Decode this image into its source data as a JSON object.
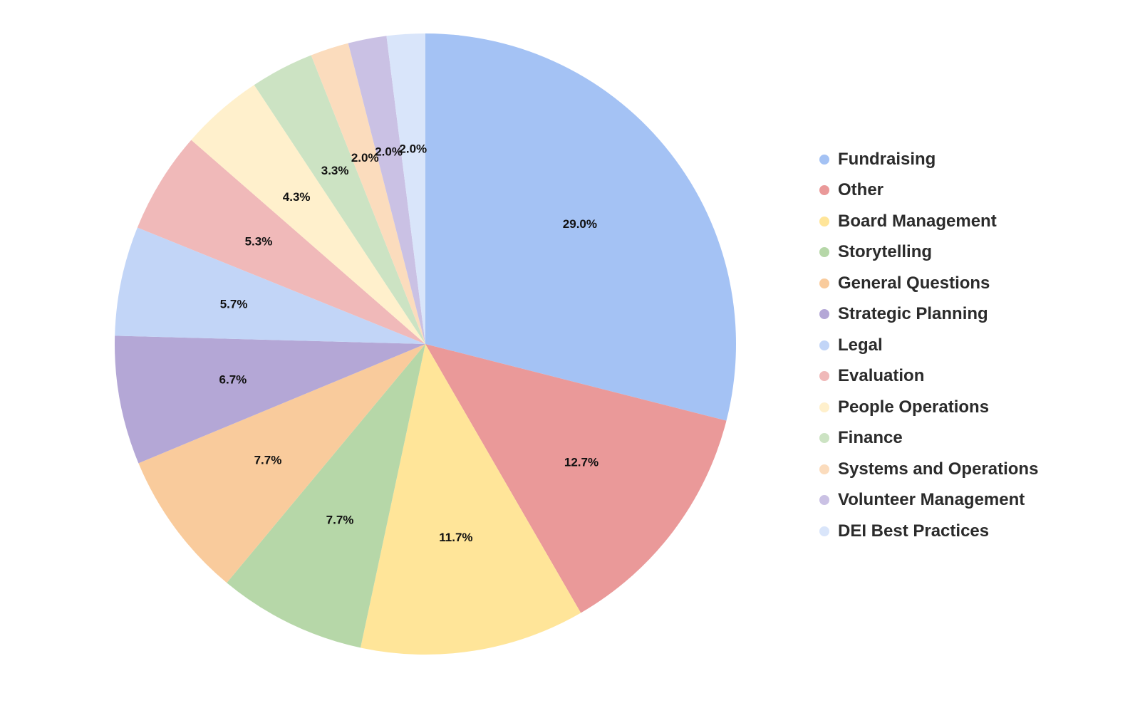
{
  "chart_data": {
    "type": "pie",
    "title": "",
    "start_angle_deg": 0,
    "direction": "clockwise",
    "legend_position": "right",
    "categories": [
      "Fundraising",
      "Other",
      "Board Management",
      "Storytelling",
      "General Questions",
      "Strategic Planning",
      "Legal",
      "Evaluation",
      "People Operations",
      "Finance",
      "Systems and Operations",
      "Volunteer Management",
      "DEI Best Practices"
    ],
    "values": [
      29.0,
      12.7,
      11.7,
      7.7,
      7.7,
      6.7,
      5.7,
      5.3,
      4.3,
      3.3,
      2.0,
      2.0,
      2.0
    ],
    "labels": [
      "29.0%",
      "12.7%",
      "11.7%",
      "7.7%",
      "7.7%",
      "6.7%",
      "5.7%",
      "5.3%",
      "4.3%",
      "3.3%",
      "2.0%",
      "2.0%",
      "2.0%"
    ],
    "colors": [
      "#a4c2f4",
      "#ea9999",
      "#ffe599",
      "#b6d7a8",
      "#f9cb9c",
      "#b4a7d6",
      "#c2d5f7",
      "#f0b9b9",
      "#fff0cc",
      "#cce3c3",
      "#fbdcbd",
      "#cac1e4",
      "#d9e5fa"
    ]
  }
}
